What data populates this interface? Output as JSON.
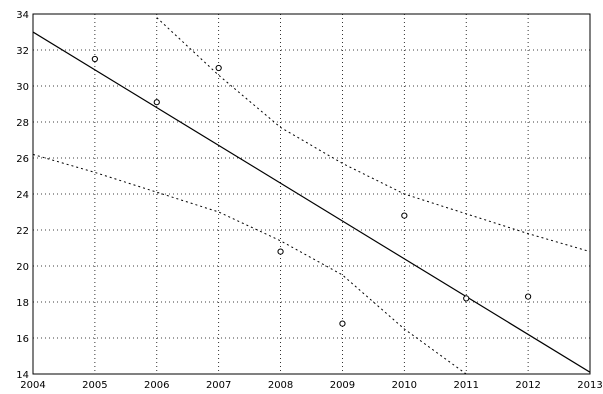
{
  "chart_data": {
    "type": "scatter",
    "title": "",
    "xlabel": "",
    "ylabel": "",
    "xlim": [
      2004,
      2013
    ],
    "ylim": [
      14,
      34
    ],
    "grid": true,
    "x_ticks": [
      2004,
      2005,
      2006,
      2007,
      2008,
      2009,
      2010,
      2011,
      2012,
      2013
    ],
    "x_tick_labels": [
      "2004",
      "2005",
      "2006",
      "2007",
      "2008",
      "2009",
      "2010",
      "2011",
      "2012",
      "2013"
    ],
    "y_ticks": [
      14,
      16,
      18,
      20,
      22,
      24,
      26,
      28,
      30,
      32,
      34
    ],
    "y_tick_labels": [
      "14",
      "16",
      "18",
      "20",
      "22",
      "24",
      "26",
      "28",
      "30",
      "32",
      "34"
    ],
    "points": {
      "x": [
        2005,
        2006,
        2007,
        2008,
        2009,
        2010,
        2011,
        2012
      ],
      "y": [
        31.5,
        29.1,
        31.0,
        20.8,
        16.8,
        22.8,
        18.2,
        18.3
      ]
    },
    "fit_line": {
      "x": [
        2004,
        2013
      ],
      "y": [
        33.0,
        14.1
      ]
    },
    "confidence_band_upper": {
      "x": [
        2006,
        2007,
        2008,
        2009,
        2010,
        2011,
        2012,
        2013
      ],
      "y": [
        33.8,
        30.6,
        27.7,
        25.7,
        24.0,
        22.9,
        21.8,
        20.8
      ]
    },
    "confidence_band_lower": {
      "x": [
        2004,
        2005,
        2006,
        2007,
        2008,
        2009,
        2010,
        2011
      ],
      "y": [
        26.2,
        25.2,
        24.1,
        23.0,
        21.4,
        19.5,
        16.5,
        14.0
      ]
    }
  }
}
